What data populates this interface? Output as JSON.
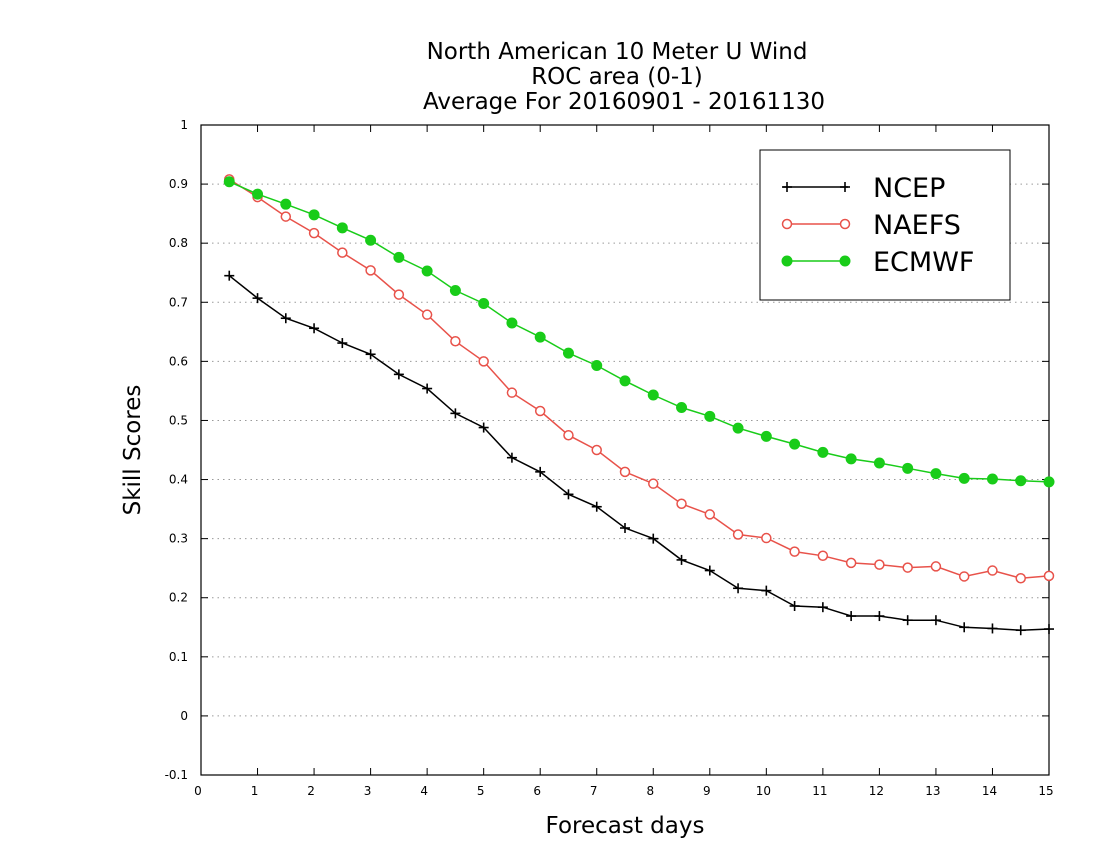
{
  "chart_data": {
    "type": "line",
    "title": [
      "North American 10 Meter U Wind",
      "ROC area (0-1)",
      "Average For 20160901 - 20161130"
    ],
    "xlabel": "Forecast days",
    "ylabel": "Skill Scores",
    "xlim": [
      0,
      15
    ],
    "ylim": [
      -0.1,
      1
    ],
    "xticks": [
      "0",
      "1",
      "2",
      "3",
      "4",
      "5",
      "6",
      "7",
      "8",
      "9",
      "10",
      "11",
      "12",
      "13",
      "14",
      "15"
    ],
    "yticks": [
      "-0.1",
      "0",
      "0.1",
      "0.2",
      "0.3",
      "0.4",
      "0.5",
      "0.6",
      "0.7",
      "0.8",
      "0.9",
      "1"
    ],
    "grid": "horizontal dotted",
    "legend_position": "top-right",
    "x": [
      0.5,
      1,
      1.5,
      2,
      2.5,
      3,
      3.5,
      4,
      4.5,
      5,
      5.5,
      6,
      6.5,
      7,
      7.5,
      8,
      8.5,
      9,
      9.5,
      10,
      10.5,
      11,
      11.5,
      12,
      12.5,
      13,
      13.5,
      14,
      14.5,
      15
    ],
    "series": [
      {
        "name": "NCEP",
        "color": "#000000",
        "marker": "plus",
        "values": [
          0.745,
          0.707,
          0.673,
          0.656,
          0.631,
          0.612,
          0.578,
          0.554,
          0.512,
          0.488,
          0.437,
          0.413,
          0.375,
          0.354,
          0.318,
          0.3,
          0.264,
          0.246,
          0.216,
          0.212,
          0.186,
          0.184,
          0.169,
          0.169,
          0.162,
          0.162,
          0.15,
          0.148,
          0.145,
          0.147
        ]
      },
      {
        "name": "NAEFS",
        "color": "#e8524a",
        "marker": "open-circle",
        "values": [
          0.908,
          0.878,
          0.845,
          0.817,
          0.784,
          0.754,
          0.713,
          0.679,
          0.634,
          0.6,
          0.547,
          0.516,
          0.475,
          0.45,
          0.413,
          0.393,
          0.359,
          0.341,
          0.307,
          0.301,
          0.278,
          0.271,
          0.259,
          0.256,
          0.251,
          0.253,
          0.236,
          0.246,
          0.233,
          0.237
        ]
      },
      {
        "name": "ECMWF",
        "color": "#19cc19",
        "marker": "filled-circle",
        "values": [
          0.904,
          0.883,
          0.866,
          0.848,
          0.826,
          0.805,
          0.776,
          0.753,
          0.72,
          0.698,
          0.665,
          0.641,
          0.614,
          0.593,
          0.567,
          0.543,
          0.522,
          0.507,
          0.487,
          0.473,
          0.46,
          0.446,
          0.435,
          0.428,
          0.419,
          0.41,
          0.402,
          0.401,
          0.398,
          0.396
        ]
      }
    ]
  }
}
